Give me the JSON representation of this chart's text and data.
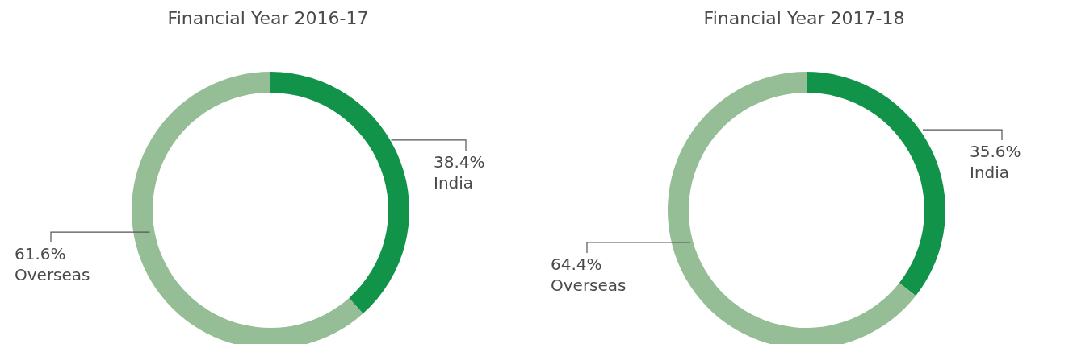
{
  "chart_data": [
    {
      "type": "donut",
      "title": "Financial Year 2016-17",
      "categories": [
        "India",
        "Overseas"
      ],
      "values": [
        38.4,
        61.6
      ],
      "colors": [
        "#12934a",
        "#95bd96"
      ],
      "value_labels": [
        "38.4%",
        "61.6%"
      ]
    },
    {
      "type": "donut",
      "title": "Financial Year 2017-18",
      "categories": [
        "India",
        "Overseas"
      ],
      "values": [
        35.6,
        64.4
      ],
      "colors": [
        "#12934a",
        "#95bd96"
      ],
      "value_labels": [
        "35.6%",
        "64.4%"
      ]
    }
  ]
}
